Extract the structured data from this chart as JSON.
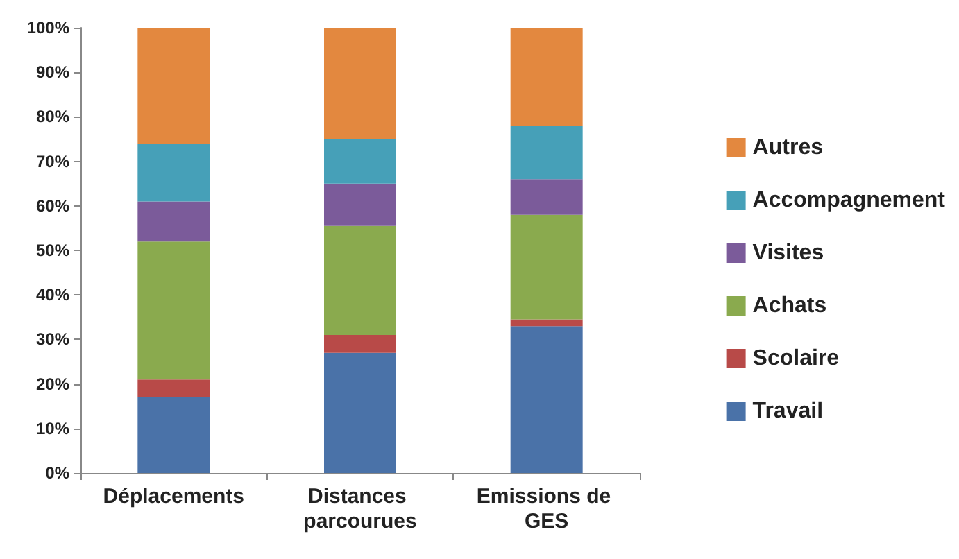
{
  "chart_data": {
    "type": "bar",
    "stacked": true,
    "categories": [
      "Déplacements",
      "Distances parcourues",
      "Emissions de GES"
    ],
    "series": [
      {
        "name": "Travail",
        "color": "#4a72a8",
        "values": [
          17,
          27,
          33
        ]
      },
      {
        "name": "Scolaire",
        "color": "#b84a48",
        "values": [
          4,
          4,
          1.5
        ]
      },
      {
        "name": "Achats",
        "color": "#8aaa4e",
        "values": [
          31,
          24.5,
          23.5
        ]
      },
      {
        "name": "Visites",
        "color": "#7b5b9a",
        "values": [
          9,
          9.5,
          8
        ]
      },
      {
        "name": "Accompagnement",
        "color": "#46a0b8",
        "values": [
          13,
          10,
          12
        ]
      },
      {
        "name": "Autres",
        "color": "#e3883f",
        "values": [
          26,
          25,
          22
        ]
      }
    ],
    "ylim": [
      0,
      100
    ],
    "yticks": [
      {
        "value": 0,
        "label": "0%"
      },
      {
        "value": 10,
        "label": "10%"
      },
      {
        "value": 20,
        "label": "20%"
      },
      {
        "value": 30,
        "label": "30%"
      },
      {
        "value": 40,
        "label": "40%"
      },
      {
        "value": 50,
        "label": "50%"
      },
      {
        "value": 60,
        "label": "60%"
      },
      {
        "value": 70,
        "label": "70%"
      },
      {
        "value": 80,
        "label": "80%"
      },
      {
        "value": 90,
        "label": "90%"
      },
      {
        "value": 100,
        "label": "100%"
      }
    ],
    "grid": false,
    "legend": "right"
  }
}
